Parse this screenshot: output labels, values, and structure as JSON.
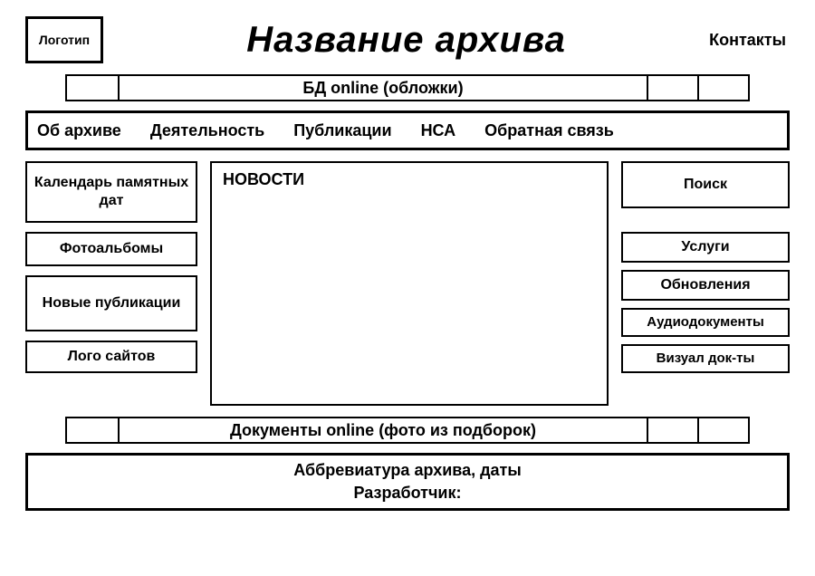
{
  "colors": {
    "border": "#000000",
    "background": "#ffffff",
    "text": "#000000"
  },
  "header": {
    "logo_label": "Логотип",
    "title": "Название архива",
    "contacts_label": "Контакты"
  },
  "strip_top": {
    "label": "БД online (обложки)"
  },
  "nav": {
    "items": [
      "Об архиве",
      "Деятельность",
      "Публикации",
      "НСА",
      "Обратная связь"
    ]
  },
  "left": {
    "calendar": "Календарь памятных дат",
    "photo": "Фотоальбомы",
    "publications": "Новые публикации",
    "partner_logos": "Лого сайтов"
  },
  "center": {
    "news_title": "НОВОСТИ"
  },
  "right": {
    "search": "Поиск",
    "services": "Услуги",
    "updates": "Обновления",
    "audio": "Аудиодокументы",
    "visual": "Визуал док-ты"
  },
  "strip_bottom": {
    "label": "Документы online (фото из подборок)"
  },
  "footer": {
    "line1": "Аббревиатура архива, даты",
    "line2": "Разработчик:"
  }
}
